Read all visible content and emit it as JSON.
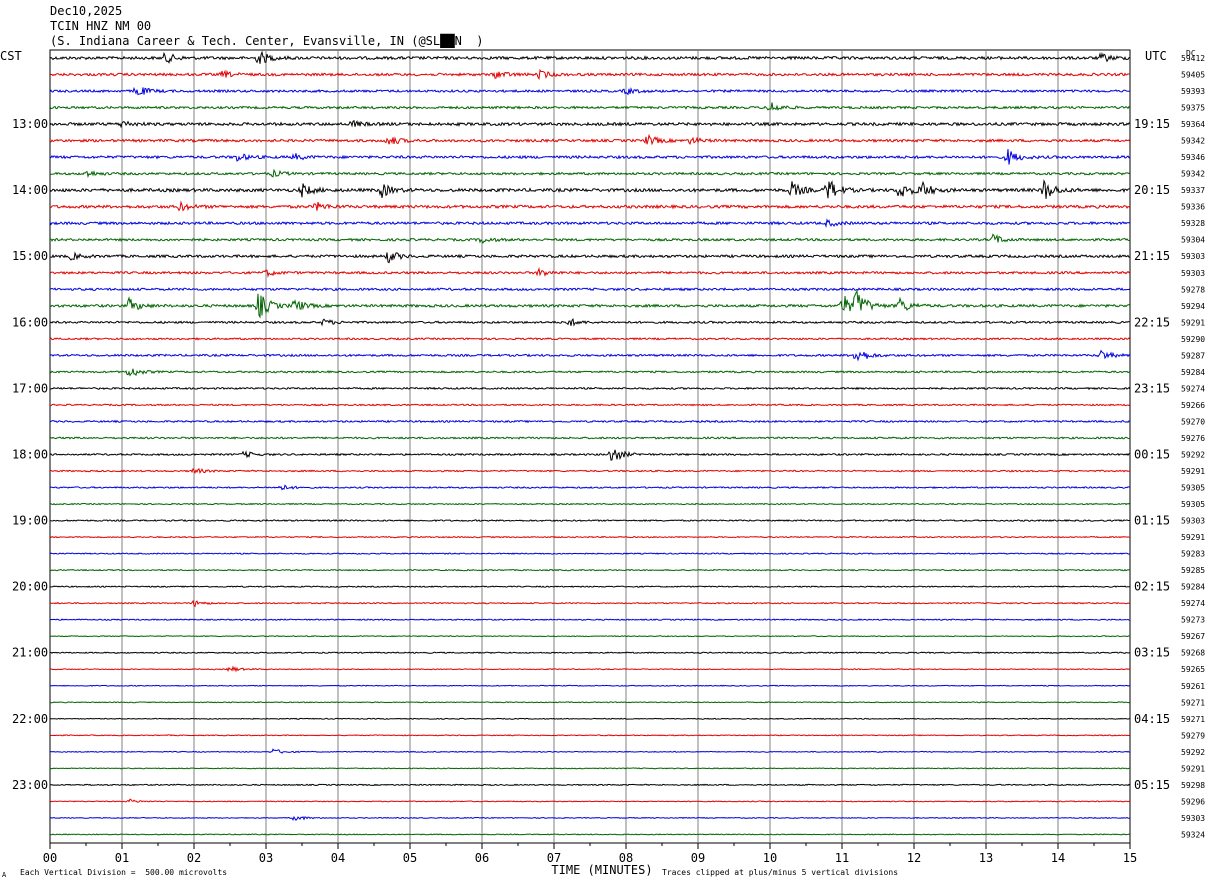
{
  "header": {
    "date": "Dec10,2025",
    "station": "TCIN HNZ NM 00",
    "location": "(S. Indiana Career & Tech. Center, Evansville, IN (@SL██N  )"
  },
  "left_axis_label": "CST",
  "right_axis_label": "UTC",
  "dc_label": "DC",
  "footer": {
    "scale_text": "Each Vertical Division =  500.00 microvolts",
    "clip_text": "Traces clipped at plus/minus 5 vertical divisions",
    "corner_mark": "A"
  },
  "colors": {
    "trace_cycle": [
      "#000000",
      "#e00000",
      "#0000e0",
      "#006400"
    ],
    "grid": "#808080"
  },
  "chart_data": {
    "type": "line",
    "description_type": "helicorder",
    "xlabel": "TIME (MINUTES)",
    "xlim": [
      0,
      15
    ],
    "x_ticks": [
      "00",
      "01",
      "02",
      "03",
      "04",
      "05",
      "06",
      "07",
      "08",
      "09",
      "10",
      "11",
      "12",
      "13",
      "14",
      "15"
    ],
    "left_hour_labels": [
      "13:00",
      "14:00",
      "15:00",
      "16:00",
      "17:00",
      "18:00",
      "19:00",
      "20:00",
      "21:00",
      "22:00",
      "23:00"
    ],
    "right_hour_labels": [
      "19:15",
      "20:15",
      "21:15",
      "22:15",
      "23:15",
      "00:15",
      "01:15",
      "02:15",
      "03:15",
      "04:15",
      "05:15"
    ],
    "dc_offsets": [
      "59412",
      "59405",
      "59393",
      "59375",
      "59364",
      "59342",
      "59346",
      "59342",
      "59337",
      "59336",
      "59328",
      "59304",
      "59303",
      "59303",
      "59278",
      "59294",
      "59291",
      "59290",
      "59287",
      "59284",
      "59274",
      "59266",
      "59270",
      "59276",
      "59292",
      "59291",
      "59305",
      "59305",
      "59303",
      "59291",
      "59283",
      "59285",
      "59284",
      "59274",
      "59273",
      "59267",
      "59268",
      "59265",
      "59261",
      "59271",
      "59271",
      "59279",
      "59292",
      "59291",
      "59298",
      "59296",
      "59303",
      "59324"
    ],
    "noise_level": [
      1.0,
      0.9,
      0.8,
      0.8,
      1.0,
      0.9,
      0.9,
      0.8,
      1.1,
      1.0,
      0.9,
      0.8,
      0.9,
      0.8,
      0.8,
      0.9,
      0.7,
      0.6,
      0.7,
      0.6,
      0.6,
      0.5,
      0.6,
      0.6,
      0.6,
      0.5,
      0.5,
      0.4,
      0.5,
      0.4,
      0.4,
      0.4,
      0.4,
      0.4,
      0.4,
      0.3,
      0.4,
      0.3,
      0.3,
      0.3,
      0.3,
      0.3,
      0.3,
      0.3,
      0.4,
      0.3,
      0.3,
      0.3
    ],
    "events": [
      {
        "trace": 0,
        "minute": 1.6,
        "amp": 5
      },
      {
        "trace": 0,
        "minute": 2.9,
        "amp": 7
      },
      {
        "trace": 0,
        "minute": 14.6,
        "amp": 4
      },
      {
        "trace": 1,
        "minute": 2.4,
        "amp": 3
      },
      {
        "trace": 1,
        "minute": 6.2,
        "amp": 4
      },
      {
        "trace": 1,
        "minute": 6.8,
        "amp": 4
      },
      {
        "trace": 2,
        "minute": 1.2,
        "amp": 6
      },
      {
        "trace": 2,
        "minute": 8.0,
        "amp": 3
      },
      {
        "trace": 3,
        "minute": 10.0,
        "amp": 6
      },
      {
        "trace": 4,
        "minute": 1.0,
        "amp": 3
      },
      {
        "trace": 4,
        "minute": 4.2,
        "amp": 3
      },
      {
        "trace": 5,
        "minute": 4.7,
        "amp": 5
      },
      {
        "trace": 5,
        "minute": 8.3,
        "amp": 5
      },
      {
        "trace": 5,
        "minute": 8.9,
        "amp": 3
      },
      {
        "trace": 6,
        "minute": 2.6,
        "amp": 4
      },
      {
        "trace": 6,
        "minute": 3.4,
        "amp": 3
      },
      {
        "trace": 6,
        "minute": 13.3,
        "amp": 8
      },
      {
        "trace": 7,
        "minute": 0.5,
        "amp": 3
      },
      {
        "trace": 7,
        "minute": 3.1,
        "amp": 3
      },
      {
        "trace": 8,
        "minute": 3.5,
        "amp": 6
      },
      {
        "trace": 8,
        "minute": 4.6,
        "amp": 7
      },
      {
        "trace": 8,
        "minute": 10.3,
        "amp": 8
      },
      {
        "trace": 8,
        "minute": 10.8,
        "amp": 12
      },
      {
        "trace": 8,
        "minute": 11.8,
        "amp": 9
      },
      {
        "trace": 8,
        "minute": 12.1,
        "amp": 8
      },
      {
        "trace": 8,
        "minute": 13.8,
        "amp": 11
      },
      {
        "trace": 9,
        "minute": 1.8,
        "amp": 4
      },
      {
        "trace": 9,
        "minute": 3.7,
        "amp": 4
      },
      {
        "trace": 10,
        "minute": 10.8,
        "amp": 3
      },
      {
        "trace": 11,
        "minute": 13.1,
        "amp": 5
      },
      {
        "trace": 11,
        "minute": 6.0,
        "amp": 3
      },
      {
        "trace": 12,
        "minute": 4.7,
        "amp": 6
      },
      {
        "trace": 12,
        "minute": 0.3,
        "amp": 3
      },
      {
        "trace": 13,
        "minute": 3.0,
        "amp": 3
      },
      {
        "trace": 13,
        "minute": 6.8,
        "amp": 4
      },
      {
        "trace": 15,
        "minute": 1.1,
        "amp": 7
      },
      {
        "trace": 15,
        "minute": 2.9,
        "amp": 14
      },
      {
        "trace": 15,
        "minute": 3.4,
        "amp": 6
      },
      {
        "trace": 15,
        "minute": 11.0,
        "amp": 12
      },
      {
        "trace": 15,
        "minute": 11.2,
        "amp": 14
      },
      {
        "trace": 15,
        "minute": 11.8,
        "amp": 8
      },
      {
        "trace": 16,
        "minute": 7.2,
        "amp": 4
      },
      {
        "trace": 16,
        "minute": 3.8,
        "amp": 3
      },
      {
        "trace": 18,
        "minute": 11.2,
        "amp": 9
      },
      {
        "trace": 18,
        "minute": 14.6,
        "amp": 5
      },
      {
        "trace": 19,
        "minute": 1.1,
        "amp": 6
      },
      {
        "trace": 24,
        "minute": 7.8,
        "amp": 9
      },
      {
        "trace": 24,
        "minute": 2.7,
        "amp": 3
      },
      {
        "trace": 25,
        "minute": 2.0,
        "amp": 3
      },
      {
        "trace": 26,
        "minute": 3.2,
        "amp": 3
      },
      {
        "trace": 33,
        "minute": 2.0,
        "amp": 3
      },
      {
        "trace": 37,
        "minute": 2.5,
        "amp": 3
      },
      {
        "trace": 42,
        "minute": 3.1,
        "amp": 3
      },
      {
        "trace": 45,
        "minute": 1.1,
        "amp": 2
      },
      {
        "trace": 46,
        "minute": 3.4,
        "amp": 3
      }
    ]
  }
}
